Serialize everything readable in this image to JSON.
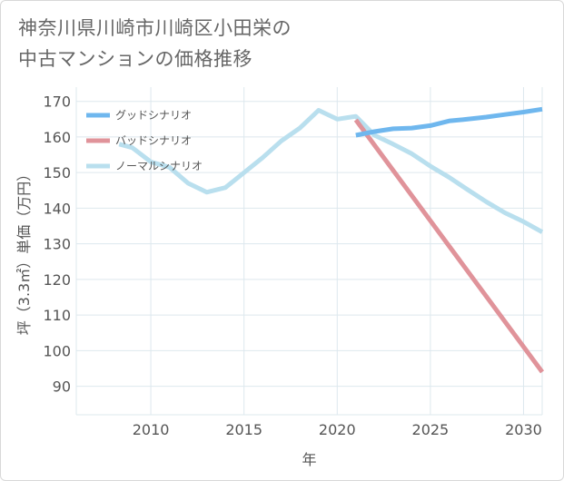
{
  "chart_data": {
    "type": "line",
    "title": "神奈川県川崎市川崎区小田栄の\n中古マンションの価格推移",
    "xlabel": "年",
    "ylabel": "坪（3.3㎡）単価（万円）",
    "xlim": [
      2006,
      2031
    ],
    "ylim": [
      82,
      174
    ],
    "xticks": [
      2010,
      2015,
      2020,
      2025,
      2030
    ],
    "yticks": [
      90,
      100,
      110,
      120,
      130,
      140,
      150,
      160,
      170
    ],
    "legend_position": "top-left",
    "series": [
      {
        "name": "グッドシナリオ",
        "color": "#6fb7ee",
        "x": [
          2021,
          2022,
          2023,
          2024,
          2025,
          2026,
          2027,
          2028,
          2029,
          2030,
          2031
        ],
        "y": [
          160.5,
          161.5,
          162.3,
          162.5,
          163.2,
          164.5,
          165.0,
          165.6,
          166.3,
          167.0,
          167.8
        ]
      },
      {
        "name": "バッドシナリオ",
        "color": "#e0939a",
        "x": [
          2021,
          2031
        ],
        "y": [
          164.8,
          94.0
        ]
      },
      {
        "name": "ノーマルシナリオ",
        "color": "#b9dfee",
        "x": [
          2008.3,
          2009,
          2010,
          2011,
          2012,
          2013,
          2014,
          2015,
          2016,
          2017,
          2018,
          2019,
          2020,
          2021,
          2022,
          2023,
          2024,
          2025,
          2026,
          2027,
          2028,
          2029,
          2030,
          2031
        ],
        "y": [
          158.0,
          157.0,
          153.0,
          151.5,
          147.0,
          144.5,
          145.8,
          150.0,
          154.2,
          158.9,
          162.5,
          167.5,
          165.0,
          165.8,
          160.5,
          158.0,
          155.3,
          151.8,
          148.7,
          145.2,
          141.8,
          138.7,
          136.2,
          133.3
        ]
      }
    ]
  }
}
